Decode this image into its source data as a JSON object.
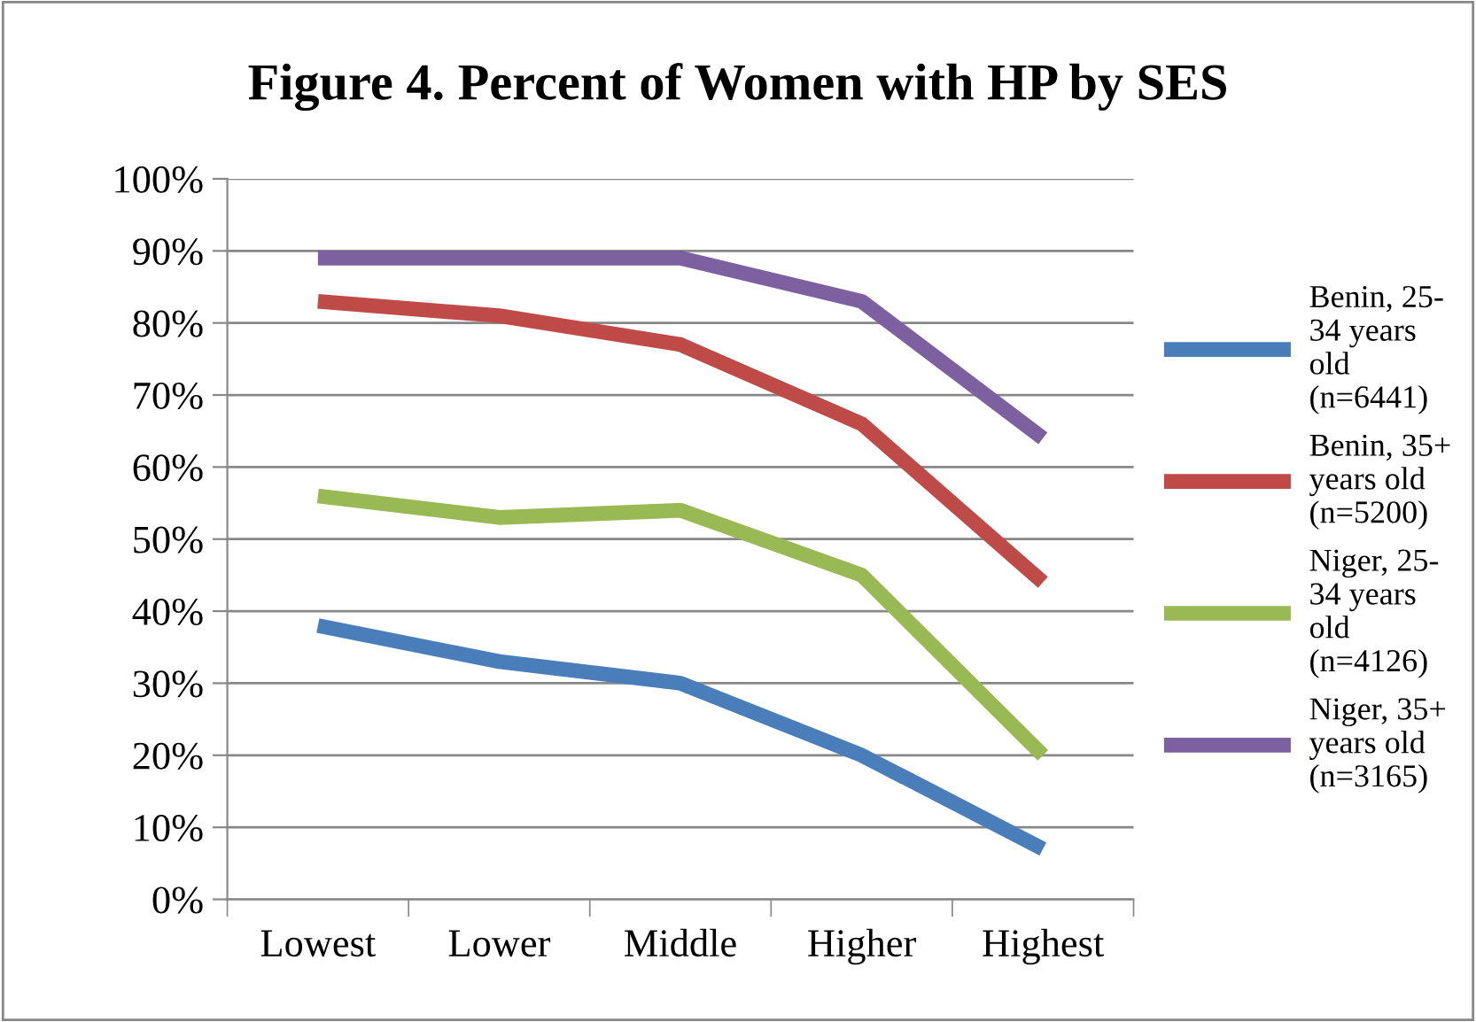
{
  "chart_data": {
    "type": "line",
    "title": "Figure 4. Percent of Women with HP by SES",
    "categories": [
      "Lowest",
      "Lower",
      "Middle",
      "Higher",
      "Highest"
    ],
    "series": [
      {
        "name": "Benin, 25-\n34 years\nold\n(n=6441)",
        "color": "#4a7ebb",
        "values": [
          38,
          33,
          30,
          20,
          7
        ]
      },
      {
        "name": "Benin, 35+\nyears old\n(n=5200)",
        "color": "#be4b48",
        "values": [
          83,
          81,
          77,
          66,
          44
        ]
      },
      {
        "name": "Niger, 25-\n34 years\nold\n(n=4126)",
        "color": "#98b954",
        "values": [
          56,
          53,
          54,
          45,
          20
        ]
      },
      {
        "name": "Niger, 35+\nyears old\n(n=3165)",
        "color": "#7d60a0",
        "values": [
          89,
          89,
          89,
          83,
          64
        ]
      }
    ],
    "ylim": [
      0,
      100
    ],
    "yticks": [
      {
        "value": 0,
        "label": "0%"
      },
      {
        "value": 10,
        "label": "10%"
      },
      {
        "value": 20,
        "label": "20%"
      },
      {
        "value": 30,
        "label": "30%"
      },
      {
        "value": 40,
        "label": "40%"
      },
      {
        "value": 50,
        "label": "50%"
      },
      {
        "value": 60,
        "label": "60%"
      },
      {
        "value": 70,
        "label": "70%"
      },
      {
        "value": 80,
        "label": "80%"
      },
      {
        "value": 90,
        "label": "90%"
      },
      {
        "value": 100,
        "label": "100%"
      }
    ],
    "grid": "y",
    "legend": "right",
    "marker": "none",
    "line_style": "solid"
  }
}
